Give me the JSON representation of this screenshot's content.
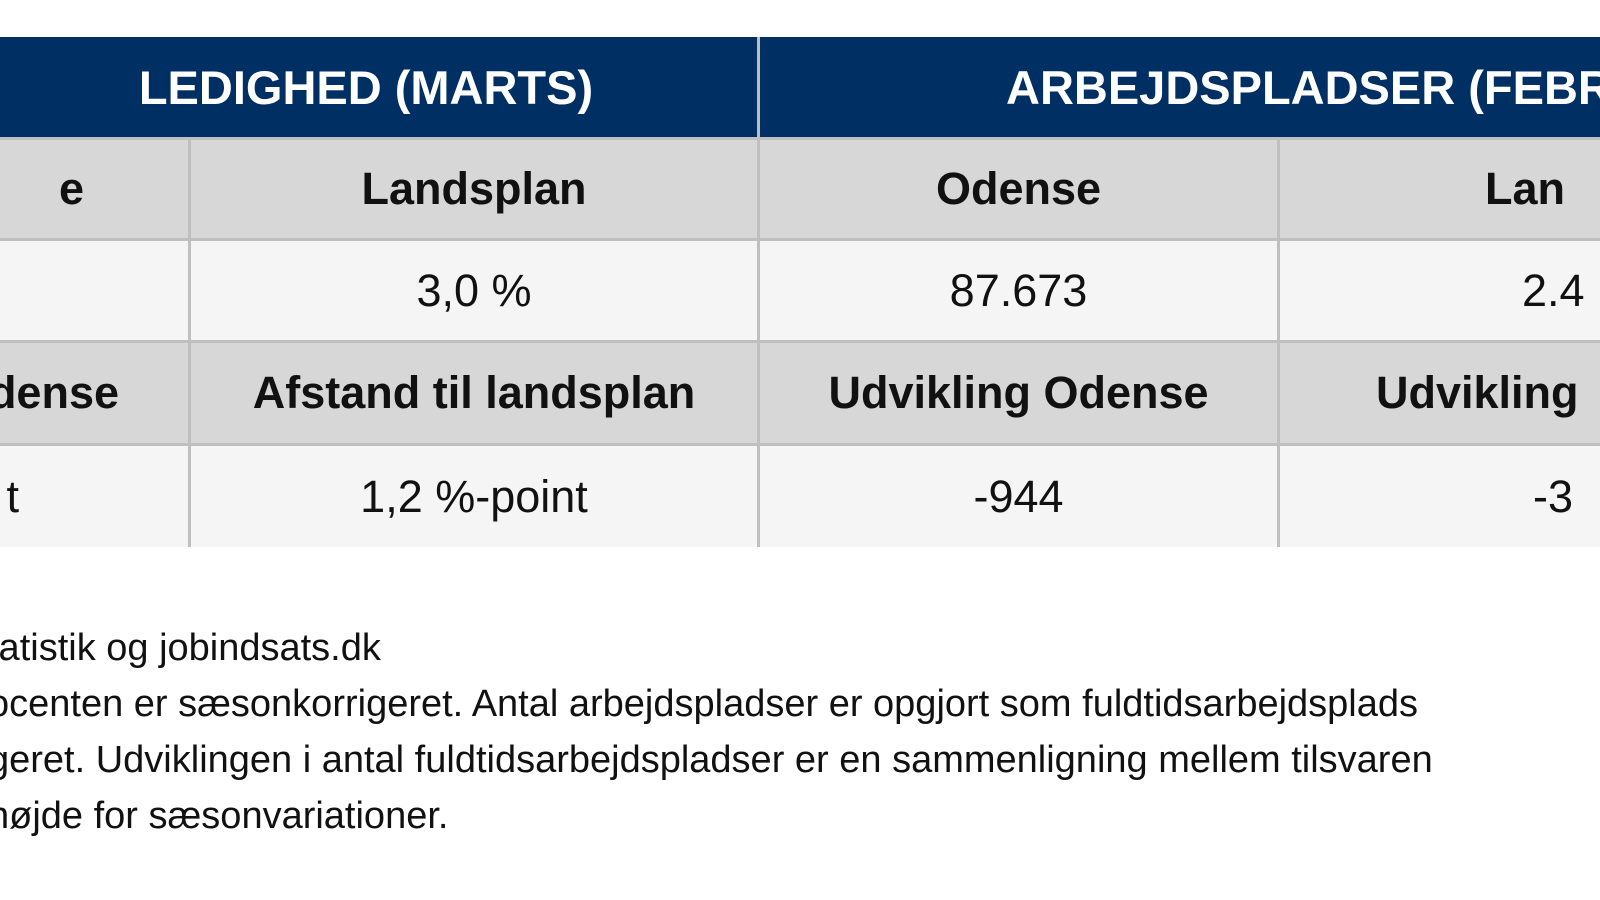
{
  "table": {
    "header": {
      "left": "LEDIGHED (MARTS)",
      "right": "ARBEJDSPLADSER (FEBRU"
    },
    "rows": [
      [
        "e",
        "Landsplan",
        "Odense",
        "Lan"
      ],
      [
        "",
        "3,0 %",
        "87.673",
        "2.4"
      ],
      [
        "dense",
        "Afstand til landsplan",
        "Udvikling Odense",
        "Udvikling"
      ],
      [
        "t",
        "1,2 %-point",
        "-944",
        "-3"
      ]
    ]
  },
  "notes": [
    "tatistik og jobindsats.dk",
    "ocenten er sæsonkorrigeret. Antal arbejdspladser er opgjort som fuldtidsarbejdsplads",
    "geret. Udviklingen i antal fuldtidsarbejdspladser er en sammenligning mellem tilsvaren",
    "højde for sæsonvariationer."
  ]
}
